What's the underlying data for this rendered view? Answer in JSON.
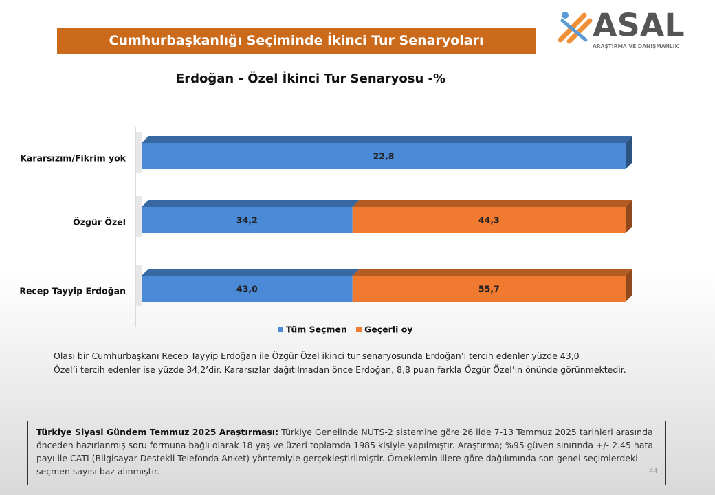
{
  "header": {
    "title": "Cumhurbaşkanlığı Seçiminde İkinci Tur Senaryoları"
  },
  "logo": {
    "name": "ASAL",
    "tagline": "ARAŞTIRMA VE DANIŞMANLIK"
  },
  "chart_data": {
    "type": "bar",
    "orientation": "horizontal",
    "stacking": "percent",
    "title": "Erdoğan - Özel İkinci Tur Senaryosu -%",
    "categories": [
      "Kararsızım/Fikrim yok",
      "Özgür Özel",
      "Recep Tayyip Erdoğan"
    ],
    "series": [
      {
        "name": "Tüm Seçmen",
        "color": "#4a8ad6",
        "values": [
          22.8,
          34.2,
          43.0
        ],
        "value_labels": [
          "22,8",
          "34,2",
          "43,0"
        ]
      },
      {
        "name": "Geçerli oy",
        "color": "#f07a30",
        "values": [
          null,
          44.3,
          55.7
        ],
        "value_labels": [
          null,
          "44,3",
          "55,7"
        ]
      }
    ],
    "legend": "bottom"
  },
  "description": [
    "Olası bir Cumhurbaşkanı  Recep Tayyip Erdoğan ile Özgür Özel ikinci tur senaryosunda Erdoğan’ı tercih edenler yüzde 43,0",
    "Özel’i tercih edenler ise yüzde 34,2’dir.  Kararsızlar dağıtılmadan önce Erdoğan, 8,8 puan farkla Özgür Özel’in önünde görünmektedir."
  ],
  "footnote": {
    "lead": "Türkiye Siyasi Gündem Temmuz 2025 Araştırması:",
    "text": " Türkiye Genelinde  NUTS-2 sistemine göre 26 ilde 7-13 Temmuz 2025 tarihleri arasında önceden  hazırlanmış soru formuna bağlı olarak 18 yaş ve üzeri toplamda 1985 kişiyle yapılmıştır. Araştırma; %95 güven sınırında +/- 2.45 hata payı ile CATI (Bilgisayar Destekli Telefonda  Anket) yöntemiyle gerçekleştirilmiştir. Örneklemin illere göre dağılımında son genel  seçimlerdeki seçmen sayısı baz alınmıştır."
  },
  "page_number": "44"
}
